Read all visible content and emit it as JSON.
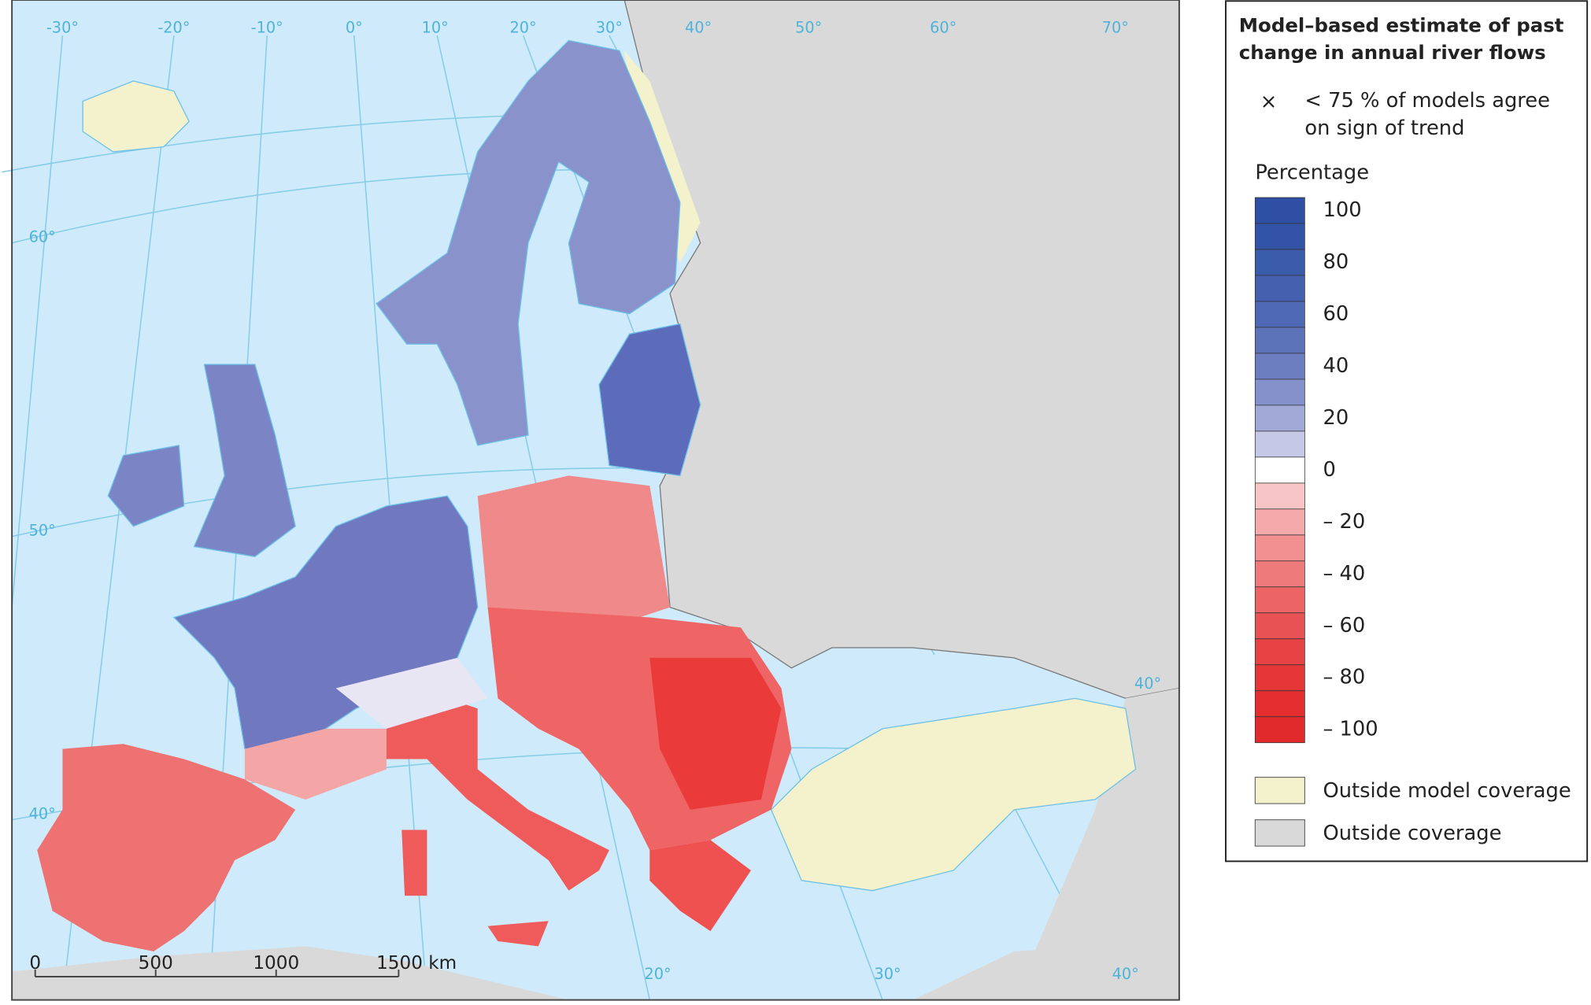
{
  "map": {
    "graticule_labels": [
      "-30°",
      "-20°",
      "-10°",
      "0°",
      "10°",
      "20°",
      "30°",
      "40°",
      "50°",
      "60°",
      "70°",
      "60°",
      "50°",
      "40°",
      "40°",
      "20°",
      "30°",
      "40°"
    ],
    "scale_bar": [
      "0",
      "500",
      "1000",
      "1500 km"
    ]
  },
  "legend": {
    "title": [
      "Model–based estimate of past",
      "change in annual river flows"
    ],
    "marker_symbol": "×",
    "marker_text": [
      "< 75 % of models agree",
      "on sign of trend"
    ],
    "scale_title": "Percentage",
    "ticks": [
      100,
      80,
      60,
      40,
      20,
      0,
      {
        "value": -20,
        "label": "– 20"
      },
      {
        "value": -40,
        "label": "– 40"
      },
      {
        "value": -60,
        "label": "– 60"
      },
      {
        "value": -80,
        "label": "– 80"
      },
      {
        "value": -100,
        "label": "– 100"
      }
    ],
    "colors": [
      "#2e4fa3",
      "#3353a6",
      "#3a5aaa",
      "#4460ae",
      "#4f68b3",
      "#5c72b9",
      "#6c7ec0",
      "#8591ca",
      "#a1a9d7",
      "#c5c9e7",
      "#ffffff",
      "#f7c5c6",
      "#f4a9ab",
      "#f28f91",
      "#ef7a7c",
      "#ec6466",
      "#e95254",
      "#e74244",
      "#e53638",
      "#e32d2f",
      "#e02a2c"
    ],
    "categories": [
      {
        "label": "Outside model coverage",
        "color": "#f3f2cc"
      },
      {
        "label": "Outside coverage",
        "color": "#d9d9d9"
      }
    ]
  }
}
